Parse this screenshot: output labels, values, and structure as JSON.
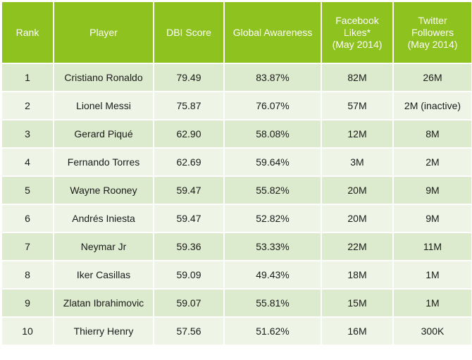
{
  "table": {
    "headers": {
      "rank": "Rank",
      "player": "Player",
      "dbi": "DBI Score",
      "awareness": "Global Awareness",
      "facebook": [
        "Facebook",
        "Likes*",
        "(May 2014)"
      ],
      "twitter": [
        "Twitter",
        "Followers",
        "(May 2014)"
      ]
    },
    "rows": [
      {
        "rank": "1",
        "player": "Cristiano Ronaldo",
        "dbi": "79.49",
        "awareness": "83.87%",
        "facebook": "82M",
        "twitter": "26M"
      },
      {
        "rank": "2",
        "player": "Lionel Messi",
        "dbi": "75.87",
        "awareness": "76.07%",
        "facebook": "57M",
        "twitter": "2M (inactive)"
      },
      {
        "rank": "3",
        "player": "Gerard Piqué",
        "dbi": "62.90",
        "awareness": "58.08%",
        "facebook": "12M",
        "twitter": "8M"
      },
      {
        "rank": "4",
        "player": "Fernando Torres",
        "dbi": "62.69",
        "awareness": "59.64%",
        "facebook": "3M",
        "twitter": "2M"
      },
      {
        "rank": "5",
        "player": "Wayne Rooney",
        "dbi": "59.47",
        "awareness": "55.82%",
        "facebook": "20M",
        "twitter": "9M"
      },
      {
        "rank": "6",
        "player": "Andrés Iniesta",
        "dbi": "59.47",
        "awareness": "52.82%",
        "facebook": "20M",
        "twitter": "9M"
      },
      {
        "rank": "7",
        "player": "Neymar Jr",
        "dbi": "59.36",
        "awareness": "53.33%",
        "facebook": "22M",
        "twitter": "11M"
      },
      {
        "rank": "8",
        "player": "Iker Casillas",
        "dbi": "59.09",
        "awareness": "49.43%",
        "facebook": "18M",
        "twitter": "1M"
      },
      {
        "rank": "9",
        "player": "Zlatan Ibrahimovic",
        "dbi": "59.07",
        "awareness": "55.81%",
        "facebook": "15M",
        "twitter": "1M"
      },
      {
        "rank": "10",
        "player": "Thierry Henry",
        "dbi": "57.56",
        "awareness": "51.62%",
        "facebook": "16M",
        "twitter": "300K"
      }
    ]
  },
  "colors": {
    "header_bg": "#8ec21f",
    "row_dark": "#dcebcd",
    "row_light": "#eef5e7"
  }
}
